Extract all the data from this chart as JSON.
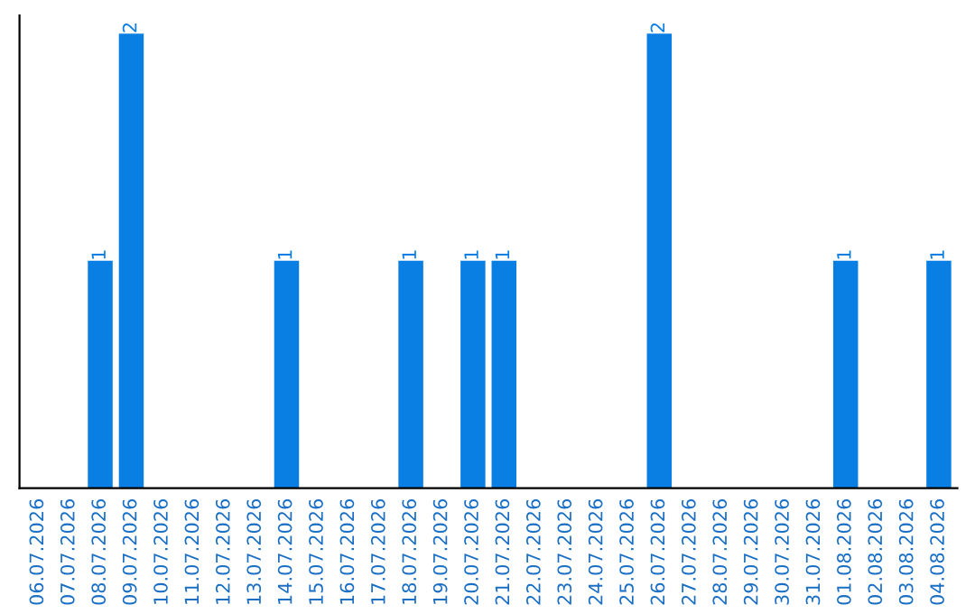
{
  "chart_data": {
    "type": "bar",
    "categories": [
      "06.07.2026",
      "07.07.2026",
      "08.07.2026",
      "09.07.2026",
      "10.07.2026",
      "11.07.2026",
      "12.07.2026",
      "13.07.2026",
      "14.07.2026",
      "15.07.2026",
      "16.07.2026",
      "17.07.2026",
      "18.07.2026",
      "19.07.2026",
      "20.07.2026",
      "21.07.2026",
      "22.07.2026",
      "23.07.2026",
      "24.07.2026",
      "25.07.2026",
      "26.07.2026",
      "27.07.2026",
      "28.07.2026",
      "29.07.2026",
      "30.07.2026",
      "31.07.2026",
      "01.08.2026",
      "02.08.2026",
      "03.08.2026",
      "04.08.2026"
    ],
    "values": [
      0,
      0,
      1,
      2,
      0,
      0,
      0,
      0,
      1,
      0,
      0,
      0,
      1,
      0,
      1,
      1,
      0,
      0,
      0,
      0,
      2,
      0,
      0,
      0,
      0,
      0,
      1,
      0,
      0,
      1
    ],
    "value_labels": [
      null,
      null,
      "1",
      "2",
      null,
      null,
      null,
      null,
      "1",
      null,
      null,
      null,
      "1",
      null,
      "1",
      "1",
      null,
      null,
      null,
      null,
      "2",
      null,
      null,
      null,
      null,
      null,
      "1",
      null,
      null,
      "1"
    ],
    "color": "#0a7fe3",
    "tick_labels": "x",
    "grid": false,
    "legend": false
  }
}
